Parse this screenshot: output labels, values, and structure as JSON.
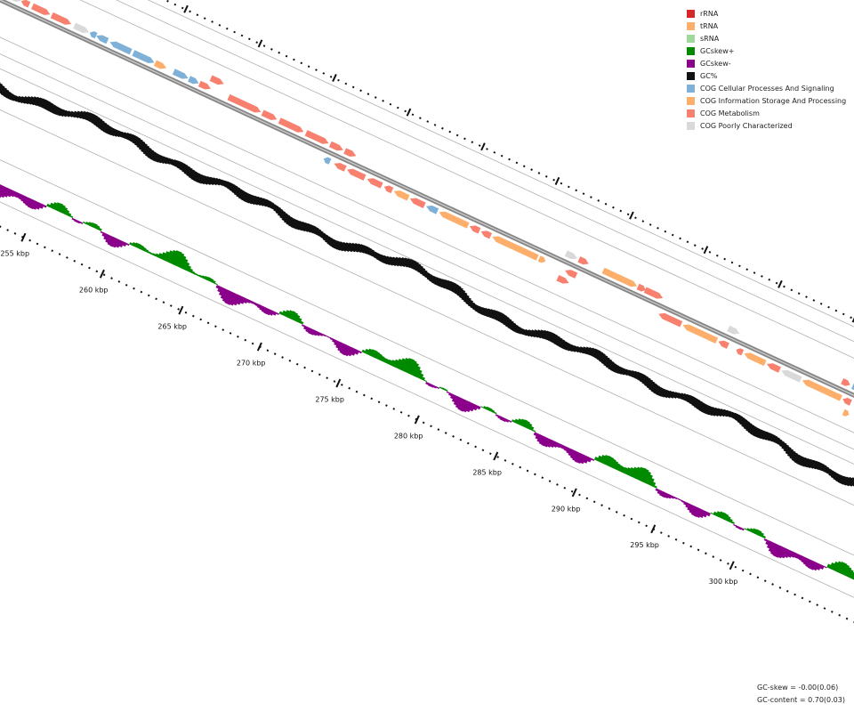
{
  "legend": [
    {
      "label": "rRNA",
      "color": "#d62728"
    },
    {
      "label": "tRNA",
      "color": "#fdae6b"
    },
    {
      "label": "sRNA",
      "color": "#a1d99b"
    },
    {
      "label": "GCskew+",
      "color": "#008a00"
    },
    {
      "label": "GCskew-",
      "color": "#8b008b"
    },
    {
      "label": "GC%",
      "color": "#111111"
    },
    {
      "label": "COG Cellular Processes And Signaling",
      "color": "#7fb1d8"
    },
    {
      "label": "COG Information Storage And Processing",
      "color": "#fdae6b"
    },
    {
      "label": "COG Metabolism",
      "color": "#f8806f"
    },
    {
      "label": "COG Poorly Characterized",
      "color": "#d9d9d9"
    }
  ],
  "scale_labels": [
    "255 kbp",
    "260 kbp",
    "265 kbp",
    "270 kbp",
    "275 kbp",
    "280 kbp",
    "285 kbp",
    "290 kbp",
    "295 kbp",
    "300 kbp"
  ],
  "stats": {
    "gc_skew": "GC-skew = -0.00(0.06)",
    "gc_content": "GC-content = 0.70(0.03)"
  }
}
